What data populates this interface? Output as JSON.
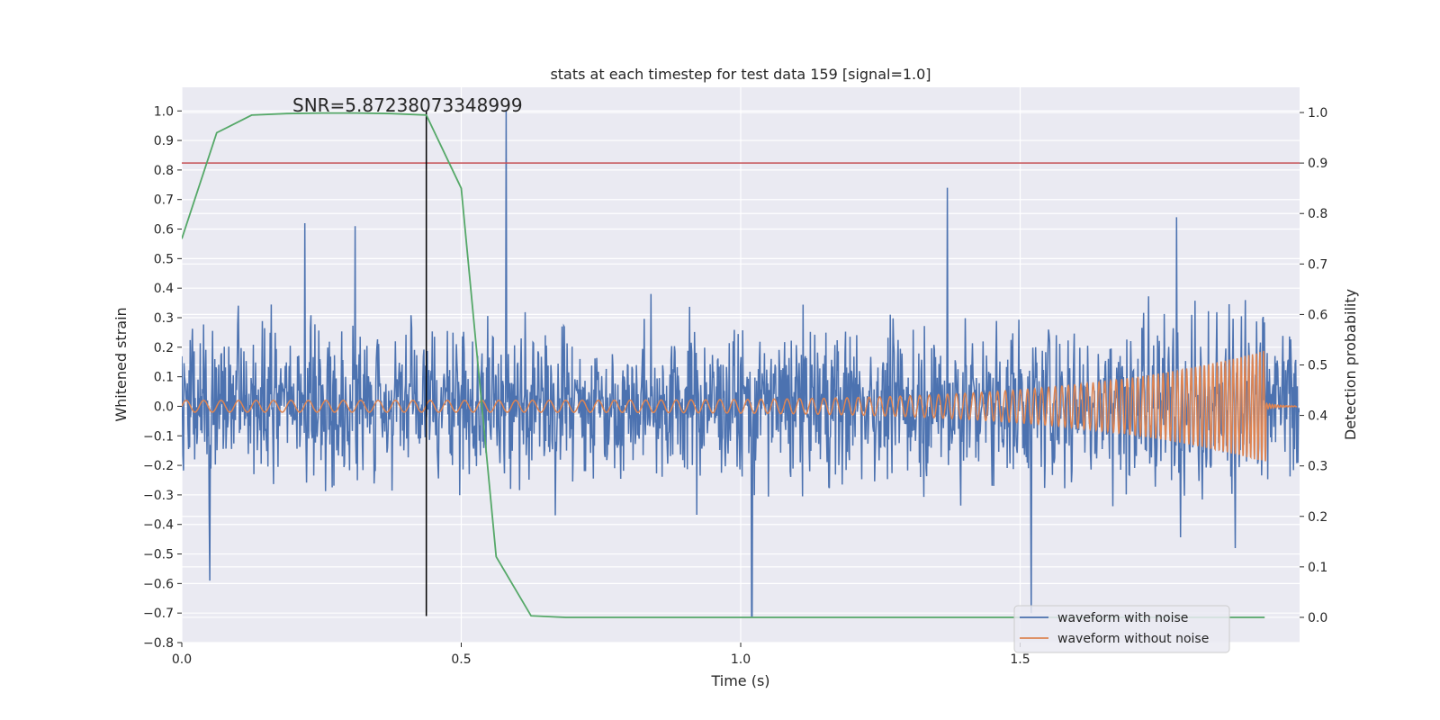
{
  "chart_data": {
    "type": "line",
    "title": "stats at each timestep for test data 159 [signal=1.0]",
    "xlabel": "Time (s)",
    "ylabel": "Whitened strain",
    "y2label": "Detection probability",
    "xlim": [
      0.0,
      2.0
    ],
    "ylim": [
      -0.8,
      1.08
    ],
    "y2lim": [
      -0.05,
      1.05
    ],
    "x_ticks": [
      0.0,
      0.5,
      1.0,
      1.5
    ],
    "x_tick_labels": [
      "0.0",
      "0.5",
      "1.0",
      "1.5"
    ],
    "y_ticks": [
      -0.8,
      -0.7,
      -0.6,
      -0.5,
      -0.4,
      -0.3,
      -0.2,
      -0.1,
      0.0,
      0.1,
      0.2,
      0.3,
      0.4,
      0.5,
      0.6,
      0.7,
      0.8,
      0.9,
      1.0
    ],
    "y_tick_labels": [
      "−0.8",
      "−0.7",
      "−0.6",
      "−0.5",
      "−0.4",
      "−0.3",
      "−0.2",
      "−0.1",
      "0.0",
      "0.1",
      "0.2",
      "0.3",
      "0.4",
      "0.5",
      "0.6",
      "0.7",
      "0.8",
      "0.9",
      "1.0"
    ],
    "y2_ticks": [
      0.0,
      0.1,
      0.2,
      0.3,
      0.4,
      0.5,
      0.6,
      0.7,
      0.8,
      0.9,
      1.0
    ],
    "y2_tick_labels": [
      "0.0",
      "0.1",
      "0.2",
      "0.3",
      "0.4",
      "0.5",
      "0.6",
      "0.7",
      "0.8",
      "0.9",
      "1.0"
    ],
    "grid": true,
    "legend_position": "lower right",
    "annotation": "SNR=5.87238073348999",
    "series": [
      {
        "name": "waveform with noise",
        "color": "#4c72b0",
        "axis": "left",
        "x_range": [
          0.0,
          2.0
        ],
        "amplitude_range": [
          -0.71,
          1.0
        ],
        "spikes": [
          {
            "x": 0.58,
            "y": 1.0
          },
          {
            "x": 1.37,
            "y": 0.74
          },
          {
            "x": 1.52,
            "y": -0.7
          },
          {
            "x": 1.02,
            "y": -0.71
          },
          {
            "x": 0.05,
            "y": -0.59
          },
          {
            "x": 0.22,
            "y": 0.62
          },
          {
            "x": 0.31,
            "y": 0.61
          },
          {
            "x": 1.78,
            "y": 0.64
          }
        ]
      },
      {
        "name": "waveform without noise",
        "color": "#dd8452",
        "axis": "left",
        "description_points": {
          "start_amplitude": 0.02,
          "end_amplitude": 0.19,
          "start_frequency_hz": 32,
          "end_frequency_hz": 180,
          "merger_time": 1.94
        }
      },
      {
        "name": "detection probability",
        "color": "#55a868",
        "axis": "right",
        "x": [
          0.0,
          0.0625,
          0.125,
          0.1875,
          0.25,
          0.3125,
          0.375,
          0.4375,
          0.5,
          0.5625,
          0.625,
          0.6875,
          0.75,
          1.0,
          1.25,
          1.5,
          1.75,
          1.9375
        ],
        "y": [
          0.75,
          0.96,
          0.995,
          0.998,
          0.999,
          0.999,
          0.998,
          0.995,
          0.85,
          0.12,
          0.003,
          0.0,
          0.0,
          0.0,
          0.0,
          0.0,
          0.0,
          0.0
        ]
      },
      {
        "name": "threshold",
        "color": "#c44e52",
        "axis": "right",
        "y": 0.9
      },
      {
        "name": "detection time",
        "color": "#000000",
        "axis": "left",
        "x": 0.4375,
        "y_range": [
          -0.71,
          1.0
        ]
      }
    ],
    "legend": [
      "waveform with noise",
      "waveform without noise"
    ]
  }
}
